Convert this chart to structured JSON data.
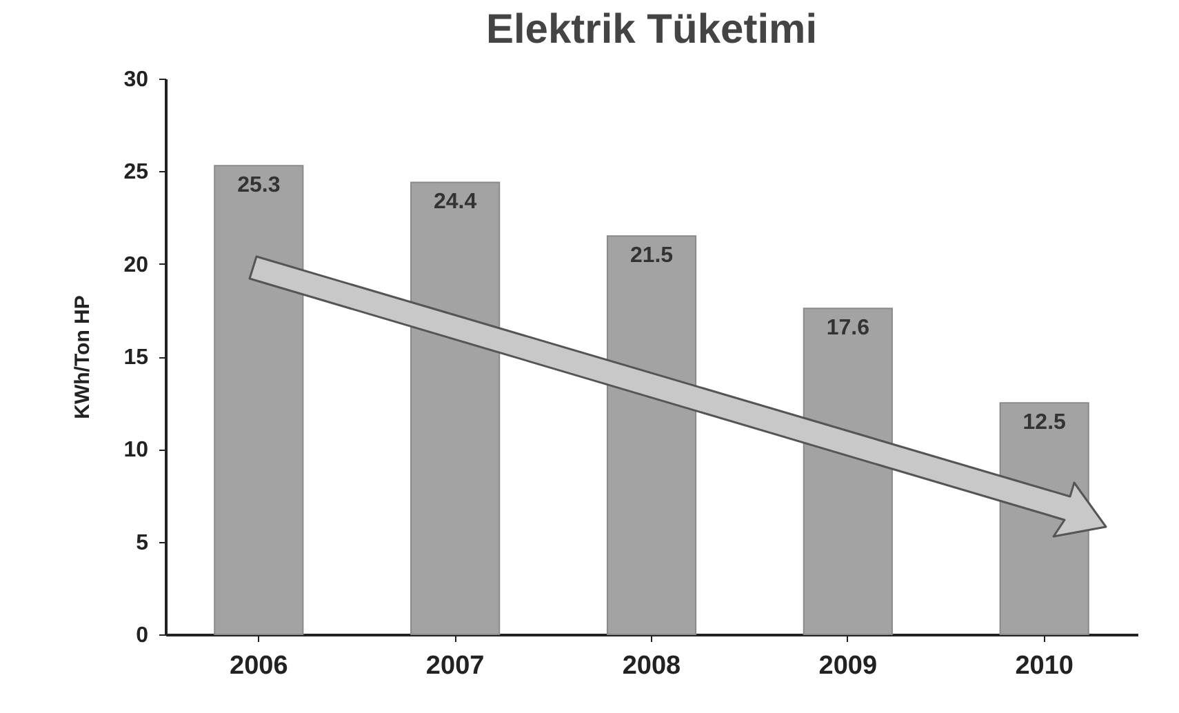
{
  "chart_data": {
    "type": "bar",
    "title": "Elektrik Tüketimi",
    "ylabel": "KWh/Ton HP",
    "categories": [
      "2006",
      "2007",
      "2008",
      "2009",
      "2010"
    ],
    "values": [
      25.3,
      24.4,
      21.5,
      17.6,
      12.5
    ],
    "color": "#a3a3a3",
    "ylim": [
      0,
      30
    ],
    "yticks": [
      0,
      5,
      10,
      15,
      20,
      25,
      30
    ],
    "data_labels": true,
    "grid": false
  }
}
